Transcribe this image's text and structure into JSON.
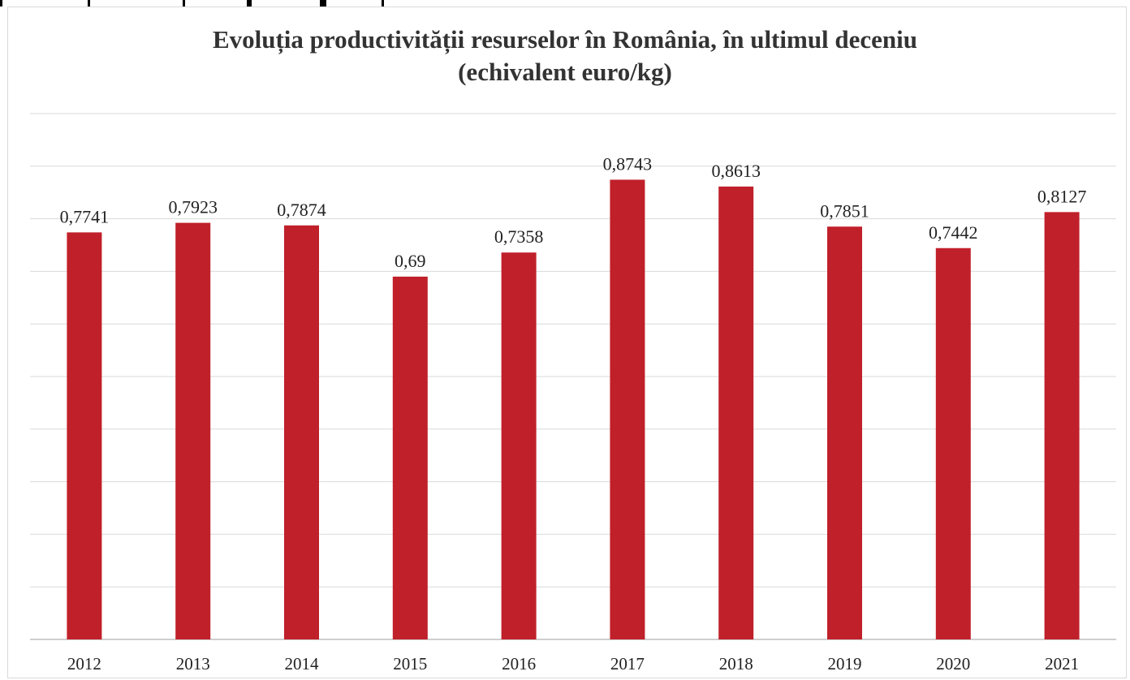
{
  "chart_data": {
    "type": "bar",
    "title": "Evoluția productivității resurselor în România, în ultimul deceniu",
    "subtitle": "(echivalent euro/kg)",
    "xlabel": "",
    "ylabel": "",
    "categories": [
      "2012",
      "2013",
      "2014",
      "2015",
      "2016",
      "2017",
      "2018",
      "2019",
      "2020",
      "2021"
    ],
    "values": [
      0.7741,
      0.7923,
      0.7874,
      0.69,
      0.7358,
      0.8743,
      0.8613,
      0.7851,
      0.7442,
      0.8127
    ],
    "data_labels": [
      "0,7741",
      "0,7923",
      "0,7874",
      "0,69",
      "0,7358",
      "0,8743",
      "0,8613",
      "0,7851",
      "0,7442",
      "0,8127"
    ],
    "ylim": [
      0,
      1
    ],
    "gridlines": [
      0.1,
      0.2,
      0.3,
      0.4,
      0.5,
      0.6,
      0.7,
      0.8,
      0.9,
      1.0
    ],
    "grid": true,
    "legend": "none",
    "colors": {
      "bar": "#c0202a",
      "grid": "#d9d9d9",
      "axis": "#bfbfbf",
      "text": "#222222"
    }
  }
}
